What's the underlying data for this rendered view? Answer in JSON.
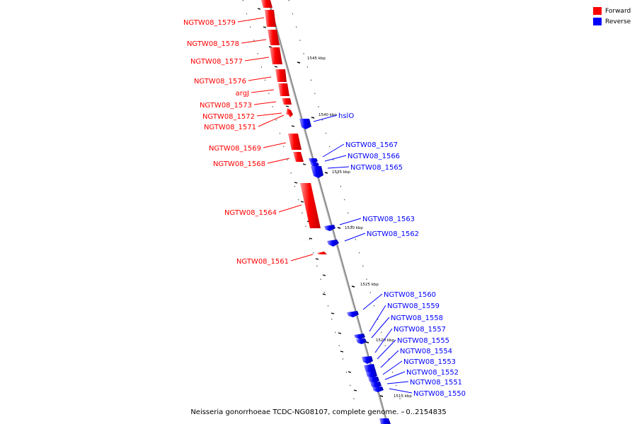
{
  "title": "Neisseria gonorrhoeae TCDC-NG08107, complete genome. - 0..2154835",
  "legend": {
    "forward_label": "Forward",
    "reverse_label": "Reverse",
    "forward_color": "#ff0000",
    "reverse_color": "#0000ff"
  },
  "ticks": [
    "1545 kbp",
    "1540 kbp",
    "1535 kbp",
    "1530 kbp",
    "1525 kbp",
    "1520 kbp",
    "1515 kbp"
  ],
  "forward_genes": [
    "NGTW08_1579",
    "NGTW08_1578",
    "NGTW08_1577",
    "NGTW08_1576",
    "argJ",
    "NGTW08_1573",
    "NGTW08_1572",
    "NGTW08_1571",
    "NGTW08_1569",
    "NGTW08_1568",
    "NGTW08_1564",
    "NGTW08_1561"
  ],
  "reverse_genes": [
    "hslO",
    "NGTW08_1567",
    "NGTW08_1566",
    "NGTW08_1565",
    "NGTW08_1563",
    "NGTW08_1562",
    "NGTW08_1560",
    "NGTW08_1559",
    "NGTW08_1558",
    "NGTW08_1557",
    "NGTW08_1555",
    "NGTW08_1554",
    "NGTW08_1553",
    "NGTW08_1552",
    "NGTW08_1551",
    "NGTW08_1550"
  ]
}
